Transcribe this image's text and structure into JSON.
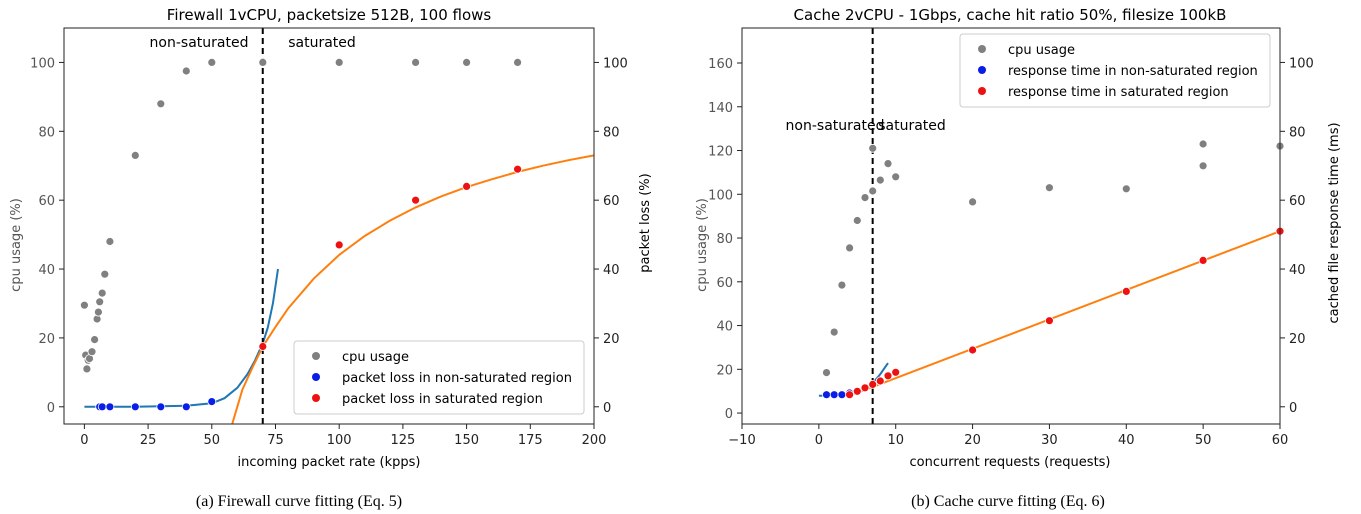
{
  "chart_data": [
    {
      "type": "scatter",
      "title": "Firewall 1vCPU,  packetsize 512B, 100 flows",
      "xlabel": "incoming packet rate (kpps)",
      "ylabel": "cpu usage (%)",
      "y2label": "packet loss (%)",
      "xlim": [
        -8,
        200
      ],
      "ylim": [
        -5,
        110
      ],
      "y2lim": [
        -5,
        110
      ],
      "xticks": [
        0,
        25,
        50,
        75,
        100,
        125,
        150,
        175,
        200
      ],
      "yticks": [
        0,
        20,
        40,
        60,
        80,
        100
      ],
      "y2ticks": [
        0,
        20,
        40,
        60,
        80,
        100
      ],
      "vline": 70,
      "annotations": [
        {
          "text": "non-saturated",
          "x": 43,
          "y": 106
        },
        {
          "text": "saturated",
          "x": 81,
          "y": 106
        }
      ],
      "legend_position": "lower-right",
      "series": [
        {
          "name": "cpu usage",
          "color": "#808080",
          "axis": "left",
          "kind": "points",
          "x": [
            0,
            0.5,
            1,
            1.5,
            2,
            3,
            4,
            5,
            5.5,
            6,
            7,
            8,
            10,
            20,
            30,
            40,
            50,
            70,
            100,
            130,
            150,
            170
          ],
          "y": [
            29.5,
            15,
            11,
            13.5,
            14,
            16,
            19.5,
            25.5,
            27.5,
            30.5,
            33,
            38.5,
            48,
            73,
            88,
            97.5,
            100,
            100,
            100,
            100,
            100,
            100
          ]
        },
        {
          "name": "packet loss in non-saturated region",
          "color": "#0a1ee8",
          "axis": "right",
          "kind": "points",
          "x": [
            6,
            7,
            10,
            20,
            30,
            40,
            50
          ],
          "y": [
            0,
            0,
            0,
            0,
            0,
            0,
            1.5
          ]
        },
        {
          "name": "packet loss in saturated region",
          "color": "#ee1111",
          "axis": "right",
          "kind": "points",
          "x": [
            70,
            100,
            130,
            150,
            170
          ],
          "y": [
            17.5,
            47,
            60,
            64,
            69
          ]
        },
        {
          "color": "#1f77b4",
          "axis": "right",
          "kind": "line",
          "x": [
            0,
            20,
            40,
            50,
            55,
            60,
            64,
            67,
            70,
            72,
            74,
            76
          ],
          "y": [
            0,
            0,
            0.3,
            1.0,
            2.5,
            5.5,
            9.5,
            13.5,
            18.5,
            23,
            30,
            40
          ]
        },
        {
          "color": "#ff7f0e",
          "axis": "right",
          "kind": "line",
          "x": [
            58,
            62,
            66,
            70,
            75,
            80,
            90,
            100,
            110,
            120,
            130,
            140,
            150,
            160,
            170,
            180,
            190,
            200
          ],
          "y": [
            -5,
            5,
            11.5,
            17.5,
            23.2,
            28.6,
            37.2,
            44.1,
            49.6,
            54.1,
            57.9,
            61.1,
            63.8,
            66.1,
            68.2,
            70.0,
            71.6,
            73.0
          ]
        }
      ]
    },
    {
      "type": "scatter",
      "title": "Cache 2vCPU - 1Gbps,  cache hit ratio 50%, filesize 100kB",
      "xlabel": "concurrent requests (requests)",
      "ylabel": "cpu usage (%)",
      "y2label": "cached file response time (ms)",
      "xlim": [
        -10,
        60
      ],
      "ylim": [
        -5,
        176
      ],
      "y2lim": [
        -5,
        110
      ],
      "xticks": [
        -10,
        0,
        10,
        20,
        30,
        40,
        50,
        60
      ],
      "yticks": [
        0,
        20,
        40,
        60,
        80,
        100,
        120,
        140,
        160
      ],
      "y2ticks": [
        0,
        20,
        40,
        60,
        80,
        100
      ],
      "vline": 7,
      "annotations": [
        {
          "text": "non-saturated",
          "x": 1.5,
          "y": 130
        },
        {
          "text": "saturated",
          "x": 12,
          "y": 130
        }
      ],
      "legend_position": "upper-right",
      "series": [
        {
          "name": "cpu usage",
          "color": "#808080",
          "axis": "left",
          "kind": "points",
          "x": [
            1,
            2,
            3,
            4,
            5,
            6,
            7,
            7,
            8,
            9,
            10,
            20,
            30,
            40,
            50,
            50,
            60
          ],
          "y": [
            18.5,
            37,
            58.5,
            75.5,
            88,
            98.5,
            101.5,
            121,
            106.5,
            114,
            108,
            96.5,
            103,
            102.5,
            113,
            123,
            122
          ]
        },
        {
          "name": "response time in non-saturated region",
          "color": "#0a1ee8",
          "axis": "right",
          "kind": "points",
          "x": [
            1,
            2,
            3,
            4,
            5
          ],
          "y": [
            3.5,
            3.5,
            3.5,
            4,
            4.5
          ]
        },
        {
          "name": "response time in saturated region",
          "color": "#ee1111",
          "axis": "right",
          "kind": "points",
          "x": [
            4,
            5,
            6,
            7,
            8,
            9,
            10,
            20,
            30,
            40,
            50,
            60
          ],
          "y": [
            3.5,
            4.5,
            5.5,
            6.5,
            7.5,
            9,
            10,
            16.5,
            25,
            33.5,
            42.5,
            51
          ]
        },
        {
          "color": "#1f77b4",
          "axis": "right",
          "kind": "line",
          "x": [
            0,
            2,
            4,
            5,
            6,
            7,
            8,
            9
          ],
          "y": [
            3.2,
            3.3,
            3.8,
            4.4,
            5.4,
            6.8,
            9.5,
            12.7
          ]
        },
        {
          "color": "#ff7f0e",
          "axis": "right",
          "kind": "line",
          "x": [
            4,
            60
          ],
          "y": [
            3.2,
            51
          ]
        }
      ]
    }
  ],
  "captions": [
    "(a) Firewall curve fitting (Eq. 5)",
    "(b) Cache curve fitting (Eq. 6)"
  ]
}
